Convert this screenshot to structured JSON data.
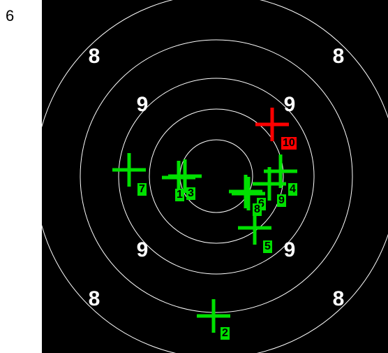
{
  "corner_label": "6",
  "ring_numbers": {
    "top_left": "8",
    "top_right": "8",
    "upper_left": "9",
    "upper_right": "9",
    "lower_left": "9",
    "lower_right": "9",
    "bottom_left": "8",
    "bottom_right": "8"
  },
  "colors": {
    "background": "#000000",
    "ring_line": "#ffffff",
    "shot_normal": "#00e000",
    "shot_highlight": "#ff0000",
    "tag_normal_bg": "#00e000",
    "tag_highlight_bg": "#ff0000"
  },
  "shots": [
    {
      "label": "1",
      "highlight": false
    },
    {
      "label": "2",
      "highlight": false
    },
    {
      "label": "3",
      "highlight": false
    },
    {
      "label": "4",
      "highlight": false
    },
    {
      "label": "5",
      "highlight": false
    },
    {
      "label": "6",
      "highlight": false
    },
    {
      "label": "7",
      "highlight": false
    },
    {
      "label": "8",
      "highlight": false
    },
    {
      "label": "9",
      "highlight": false
    },
    {
      "label": "10",
      "highlight": true
    }
  ]
}
